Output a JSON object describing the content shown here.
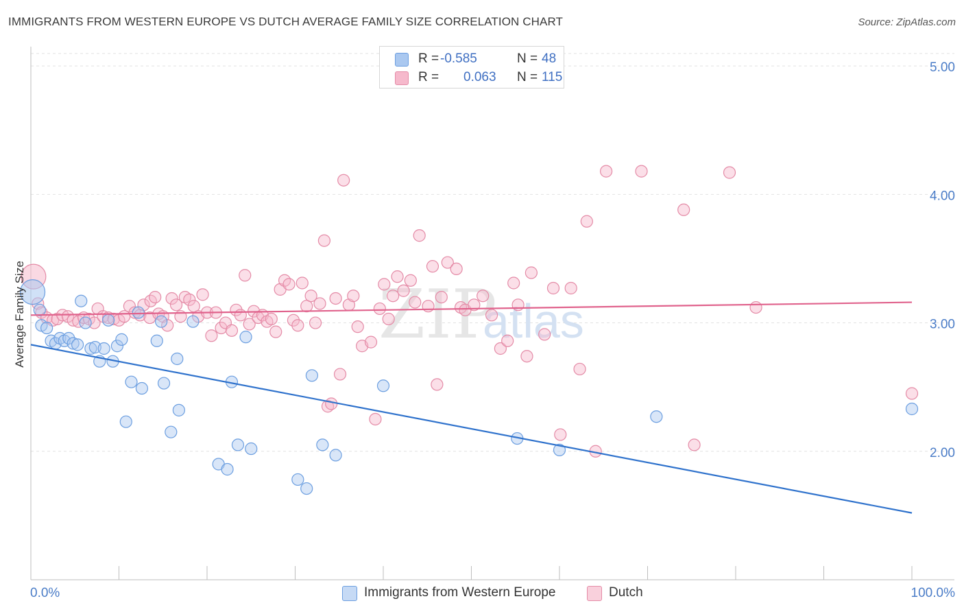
{
  "header": {
    "title": "IMMIGRANTS FROM WESTERN EUROPE VS DUTCH AVERAGE FAMILY SIZE CORRELATION CHART",
    "source": "Source: ZipAtlas.com"
  },
  "watermark": {
    "zip": "ZIP",
    "atlas": "atlas"
  },
  "legend_top": {
    "rows": [
      {
        "r_label": "R =",
        "r_value": "-0.585",
        "n_label": "N =",
        "n_value": "48"
      },
      {
        "r_label": "R =",
        "r_value": "0.063",
        "n_label": "N =",
        "n_value": "115"
      }
    ]
  },
  "colors": {
    "blue_fill": "#aac8f0",
    "blue_stroke": "#6b9ee0",
    "blue_line": "#2f72cc",
    "pink_fill": "#f6b9cc",
    "pink_stroke": "#e48aa6",
    "pink_line": "#e0628c",
    "grid": "#e2e2e2",
    "axis": "#bdbdbd",
    "tick_text": "#4a7cc7"
  },
  "chart_data": {
    "type": "scatter",
    "title": "IMMIGRANTS FROM WESTERN EUROPE VS DUTCH AVERAGE FAMILY SIZE CORRELATION CHART",
    "xlabel": "",
    "ylabel": "Average Family Size",
    "xlim": [
      0,
      100
    ],
    "ylim": [
      1.0,
      5.15
    ],
    "x_tick_labels": [
      "0.0%",
      "100.0%"
    ],
    "y_ticks": [
      2.0,
      3.0,
      4.0,
      5.0
    ],
    "y_tick_labels": [
      "2.00",
      "3.00",
      "4.00",
      "5.00"
    ],
    "grid": true,
    "legend_position": "bottom",
    "series": [
      {
        "name": "Immigrants from Western Europe",
        "r": -0.585,
        "n": 48,
        "trend": {
          "x": [
            0,
            100
          ],
          "y": [
            2.83,
            1.52
          ]
        },
        "points": [
          {
            "x": 0.2,
            "y": 3.24,
            "big": true
          },
          {
            "x": 1.0,
            "y": 3.1
          },
          {
            "x": 1.2,
            "y": 2.98
          },
          {
            "x": 1.8,
            "y": 2.96
          },
          {
            "x": 2.3,
            "y": 2.86
          },
          {
            "x": 2.8,
            "y": 2.84
          },
          {
            "x": 3.3,
            "y": 2.88
          },
          {
            "x": 3.8,
            "y": 2.86
          },
          {
            "x": 4.3,
            "y": 2.88
          },
          {
            "x": 4.8,
            "y": 2.84
          },
          {
            "x": 5.3,
            "y": 2.83
          },
          {
            "x": 5.7,
            "y": 3.17
          },
          {
            "x": 6.2,
            "y": 3.0
          },
          {
            "x": 6.8,
            "y": 2.8
          },
          {
            "x": 7.3,
            "y": 2.81
          },
          {
            "x": 7.8,
            "y": 2.7
          },
          {
            "x": 8.3,
            "y": 2.8
          },
          {
            "x": 8.8,
            "y": 3.02
          },
          {
            "x": 9.3,
            "y": 2.7
          },
          {
            "x": 9.8,
            "y": 2.82
          },
          {
            "x": 10.3,
            "y": 2.87
          },
          {
            "x": 10.8,
            "y": 2.23
          },
          {
            "x": 11.4,
            "y": 2.54
          },
          {
            "x": 12.6,
            "y": 2.49
          },
          {
            "x": 12.2,
            "y": 3.08
          },
          {
            "x": 14.3,
            "y": 2.86
          },
          {
            "x": 14.8,
            "y": 3.01
          },
          {
            "x": 15.1,
            "y": 2.53
          },
          {
            "x": 15.9,
            "y": 2.15
          },
          {
            "x": 16.6,
            "y": 2.72
          },
          {
            "x": 16.8,
            "y": 2.32
          },
          {
            "x": 18.4,
            "y": 3.01
          },
          {
            "x": 21.3,
            "y": 1.9
          },
          {
            "x": 22.3,
            "y": 1.86
          },
          {
            "x": 22.8,
            "y": 2.54
          },
          {
            "x": 23.5,
            "y": 2.05
          },
          {
            "x": 24.4,
            "y": 2.89
          },
          {
            "x": 25.0,
            "y": 2.02
          },
          {
            "x": 30.3,
            "y": 1.78
          },
          {
            "x": 31.3,
            "y": 1.71
          },
          {
            "x": 31.9,
            "y": 2.59
          },
          {
            "x": 33.1,
            "y": 2.05
          },
          {
            "x": 34.6,
            "y": 1.97
          },
          {
            "x": 40.0,
            "y": 2.51
          },
          {
            "x": 55.2,
            "y": 2.1
          },
          {
            "x": 60.0,
            "y": 2.01
          },
          {
            "x": 71.0,
            "y": 2.27
          },
          {
            "x": 100.0,
            "y": 2.33
          }
        ]
      },
      {
        "name": "Dutch",
        "r": 0.063,
        "n": 115,
        "trend": {
          "x": [
            0,
            100
          ],
          "y": [
            3.06,
            3.16
          ]
        },
        "points": [
          {
            "x": 0.3,
            "y": 3.36,
            "big": true
          },
          {
            "x": 0.8,
            "y": 3.15
          },
          {
            "x": 1.2,
            "y": 3.08
          },
          {
            "x": 1.8,
            "y": 3.04
          },
          {
            "x": 2.5,
            "y": 3.02
          },
          {
            "x": 3.0,
            "y": 3.03
          },
          {
            "x": 3.6,
            "y": 3.06
          },
          {
            "x": 4.2,
            "y": 3.05
          },
          {
            "x": 4.8,
            "y": 3.02
          },
          {
            "x": 5.4,
            "y": 3.01
          },
          {
            "x": 6.0,
            "y": 3.04
          },
          {
            "x": 6.6,
            "y": 3.03
          },
          {
            "x": 7.2,
            "y": 3.0
          },
          {
            "x": 7.6,
            "y": 3.11
          },
          {
            "x": 8.2,
            "y": 3.05
          },
          {
            "x": 8.8,
            "y": 3.04
          },
          {
            "x": 9.4,
            "y": 3.03
          },
          {
            "x": 10.0,
            "y": 3.02
          },
          {
            "x": 10.6,
            "y": 3.05
          },
          {
            "x": 11.2,
            "y": 3.13
          },
          {
            "x": 11.8,
            "y": 3.08
          },
          {
            "x": 12.4,
            "y": 3.06
          },
          {
            "x": 12.8,
            "y": 3.14
          },
          {
            "x": 13.5,
            "y": 3.04
          },
          {
            "x": 13.6,
            "y": 3.17
          },
          {
            "x": 14.1,
            "y": 3.2
          },
          {
            "x": 14.5,
            "y": 3.07
          },
          {
            "x": 15.0,
            "y": 3.05
          },
          {
            "x": 15.5,
            "y": 2.98
          },
          {
            "x": 16.0,
            "y": 3.19
          },
          {
            "x": 16.5,
            "y": 3.14
          },
          {
            "x": 17.0,
            "y": 3.05
          },
          {
            "x": 17.5,
            "y": 3.2
          },
          {
            "x": 18.0,
            "y": 3.18
          },
          {
            "x": 18.5,
            "y": 3.13
          },
          {
            "x": 19.0,
            "y": 3.05
          },
          {
            "x": 19.5,
            "y": 3.22
          },
          {
            "x": 20.0,
            "y": 3.08
          },
          {
            "x": 20.5,
            "y": 2.9
          },
          {
            "x": 21.0,
            "y": 3.08
          },
          {
            "x": 21.6,
            "y": 2.96
          },
          {
            "x": 22.1,
            "y": 3.0
          },
          {
            "x": 22.8,
            "y": 2.94
          },
          {
            "x": 23.3,
            "y": 3.1
          },
          {
            "x": 23.8,
            "y": 3.06
          },
          {
            "x": 24.3,
            "y": 3.37
          },
          {
            "x": 24.8,
            "y": 2.99
          },
          {
            "x": 25.3,
            "y": 3.09
          },
          {
            "x": 25.8,
            "y": 3.04
          },
          {
            "x": 26.3,
            "y": 3.06
          },
          {
            "x": 26.8,
            "y": 3.01
          },
          {
            "x": 27.3,
            "y": 3.03
          },
          {
            "x": 27.8,
            "y": 2.93
          },
          {
            "x": 28.3,
            "y": 3.26
          },
          {
            "x": 28.8,
            "y": 3.33
          },
          {
            "x": 29.3,
            "y": 3.3
          },
          {
            "x": 29.8,
            "y": 3.02
          },
          {
            "x": 30.3,
            "y": 2.98
          },
          {
            "x": 30.8,
            "y": 3.31
          },
          {
            "x": 31.3,
            "y": 3.13
          },
          {
            "x": 31.8,
            "y": 3.21
          },
          {
            "x": 32.3,
            "y": 3.0
          },
          {
            "x": 32.8,
            "y": 3.15
          },
          {
            "x": 33.3,
            "y": 3.64
          },
          {
            "x": 33.7,
            "y": 2.35
          },
          {
            "x": 34.1,
            "y": 2.37
          },
          {
            "x": 34.6,
            "y": 3.19
          },
          {
            "x": 35.1,
            "y": 2.6
          },
          {
            "x": 35.5,
            "y": 4.11
          },
          {
            "x": 36.1,
            "y": 3.14
          },
          {
            "x": 36.6,
            "y": 3.21
          },
          {
            "x": 37.1,
            "y": 2.97
          },
          {
            "x": 37.6,
            "y": 2.82
          },
          {
            "x": 38.6,
            "y": 2.85
          },
          {
            "x": 39.1,
            "y": 2.25
          },
          {
            "x": 39.6,
            "y": 3.11
          },
          {
            "x": 40.1,
            "y": 3.3
          },
          {
            "x": 40.6,
            "y": 3.03
          },
          {
            "x": 41.1,
            "y": 3.21
          },
          {
            "x": 41.6,
            "y": 3.36
          },
          {
            "x": 42.3,
            "y": 3.25
          },
          {
            "x": 43.1,
            "y": 3.33
          },
          {
            "x": 43.6,
            "y": 3.16
          },
          {
            "x": 44.1,
            "y": 3.68
          },
          {
            "x": 45.1,
            "y": 3.13
          },
          {
            "x": 45.6,
            "y": 3.44
          },
          {
            "x": 46.1,
            "y": 2.52
          },
          {
            "x": 46.6,
            "y": 3.2
          },
          {
            "x": 47.3,
            "y": 3.47
          },
          {
            "x": 48.3,
            "y": 3.42
          },
          {
            "x": 48.8,
            "y": 3.12
          },
          {
            "x": 49.3,
            "y": 3.1
          },
          {
            "x": 50.3,
            "y": 3.14
          },
          {
            "x": 51.3,
            "y": 3.21
          },
          {
            "x": 52.3,
            "y": 3.06
          },
          {
            "x": 53.3,
            "y": 2.8
          },
          {
            "x": 54.1,
            "y": 2.86
          },
          {
            "x": 54.8,
            "y": 3.31
          },
          {
            "x": 55.3,
            "y": 3.14
          },
          {
            "x": 56.3,
            "y": 2.74
          },
          {
            "x": 56.8,
            "y": 3.39
          },
          {
            "x": 58.3,
            "y": 2.91
          },
          {
            "x": 59.3,
            "y": 3.27
          },
          {
            "x": 60.1,
            "y": 2.13
          },
          {
            "x": 61.3,
            "y": 3.27
          },
          {
            "x": 62.3,
            "y": 2.64
          },
          {
            "x": 63.1,
            "y": 3.79
          },
          {
            "x": 64.1,
            "y": 2.0
          },
          {
            "x": 65.3,
            "y": 4.18
          },
          {
            "x": 69.3,
            "y": 4.18
          },
          {
            "x": 74.1,
            "y": 3.88
          },
          {
            "x": 75.3,
            "y": 2.05
          },
          {
            "x": 79.3,
            "y": 4.17
          },
          {
            "x": 82.3,
            "y": 3.12
          },
          {
            "x": 100.0,
            "y": 2.45
          }
        ]
      }
    ]
  }
}
